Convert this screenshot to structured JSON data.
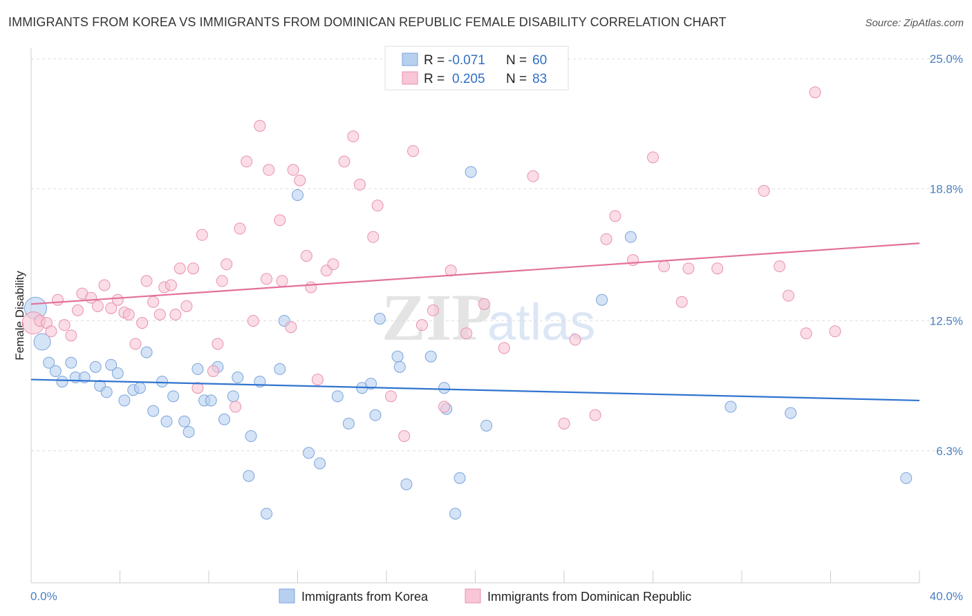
{
  "header": {
    "title": "IMMIGRANTS FROM KOREA VS IMMIGRANTS FROM DOMINICAN REPUBLIC FEMALE DISABILITY CORRELATION CHART",
    "source": "Source: ZipAtlas.com"
  },
  "watermark": {
    "zip": "ZIP",
    "atlas": "atlas"
  },
  "legend_box": {
    "rows": [
      {
        "r_label": "R =",
        "r_value": "-0.071",
        "n_label": "N =",
        "n_value": "60"
      },
      {
        "r_label": "R =",
        "r_value": "0.205",
        "n_label": "N =",
        "n_value": "83"
      }
    ]
  },
  "bottom_legend": [
    "Immigrants from Korea",
    "Immigrants from Dominican Republic"
  ],
  "colors": {
    "korea_fill": "#b8d0f0",
    "korea_stroke": "#7aa3dc",
    "korea_line": "#2f74cf",
    "dominican_fill": "#f8c6d6",
    "dominican_stroke": "#e890ae",
    "dominican_line": "#e2709a",
    "grid": "#dddddd",
    "axis_text": "#4a7fc1"
  },
  "chart_data": {
    "type": "scatter",
    "title": "IMMIGRANTS FROM KOREA VS IMMIGRANTS FROM DOMINICAN REPUBLIC FEMALE DISABILITY CORRELATION CHART",
    "xlabel": "",
    "ylabel": "Female Disability",
    "xlim": [
      0,
      40
    ],
    "ylim": [
      0,
      25.5
    ],
    "x_ticks": [
      "0.0%",
      "40.0%"
    ],
    "y_ticks": [
      {
        "value": 6.3,
        "label": "6.3%"
      },
      {
        "value": 12.5,
        "label": "12.5%"
      },
      {
        "value": 18.8,
        "label": "18.8%"
      },
      {
        "value": 25.0,
        "label": "25.0%"
      }
    ],
    "grid": "horizontal dashed",
    "legend_placement": "top-center",
    "series": [
      {
        "name": "Immigrants from Korea",
        "r": -0.071,
        "n": 60,
        "trend": {
          "x": [
            0,
            40
          ],
          "y": [
            9.7,
            8.7
          ]
        },
        "points": [
          [
            0.2,
            13.1
          ],
          [
            0.5,
            11.5
          ],
          [
            0.8,
            10.5
          ],
          [
            1.1,
            10.1
          ],
          [
            1.4,
            9.6
          ],
          [
            1.8,
            10.5
          ],
          [
            2.0,
            9.8
          ],
          [
            2.4,
            9.8
          ],
          [
            2.9,
            10.3
          ],
          [
            3.1,
            9.4
          ],
          [
            3.4,
            9.1
          ],
          [
            3.6,
            10.4
          ],
          [
            3.9,
            10.0
          ],
          [
            4.2,
            8.7
          ],
          [
            4.6,
            9.2
          ],
          [
            4.9,
            9.3
          ],
          [
            5.2,
            11.0
          ],
          [
            5.5,
            8.2
          ],
          [
            5.9,
            9.6
          ],
          [
            6.1,
            7.7
          ],
          [
            6.4,
            8.9
          ],
          [
            6.9,
            7.7
          ],
          [
            7.1,
            7.2
          ],
          [
            7.5,
            10.2
          ],
          [
            7.8,
            8.7
          ],
          [
            8.1,
            8.7
          ],
          [
            8.4,
            10.3
          ],
          [
            8.7,
            7.8
          ],
          [
            9.1,
            8.9
          ],
          [
            9.3,
            9.8
          ],
          [
            9.8,
            5.1
          ],
          [
            9.9,
            7.0
          ],
          [
            10.3,
            9.6
          ],
          [
            10.6,
            3.3
          ],
          [
            11.2,
            10.2
          ],
          [
            11.4,
            12.5
          ],
          [
            12.0,
            18.5
          ],
          [
            12.5,
            6.2
          ],
          [
            13.0,
            5.7
          ],
          [
            13.8,
            8.9
          ],
          [
            14.3,
            7.6
          ],
          [
            14.9,
            9.3
          ],
          [
            15.3,
            9.5
          ],
          [
            15.5,
            8.0
          ],
          [
            15.7,
            12.6
          ],
          [
            16.5,
            10.8
          ],
          [
            16.6,
            10.3
          ],
          [
            16.9,
            4.7
          ],
          [
            18.0,
            10.8
          ],
          [
            18.6,
            9.3
          ],
          [
            18.7,
            8.3
          ],
          [
            19.1,
            3.3
          ],
          [
            19.3,
            5.0
          ],
          [
            19.8,
            19.6
          ],
          [
            20.5,
            7.5
          ],
          [
            25.7,
            13.5
          ],
          [
            27.0,
            16.5
          ],
          [
            31.5,
            8.4
          ],
          [
            34.2,
            8.1
          ],
          [
            39.4,
            5.0
          ]
        ]
      },
      {
        "name": "Immigrants from Dominican Republic",
        "r": 0.205,
        "n": 83,
        "trend": {
          "x": [
            0,
            40
          ],
          "y": [
            13.3,
            16.2
          ]
        },
        "points": [
          [
            0.1,
            12.4
          ],
          [
            0.4,
            12.5
          ],
          [
            0.7,
            12.4
          ],
          [
            0.9,
            12.0
          ],
          [
            1.2,
            13.5
          ],
          [
            1.5,
            12.3
          ],
          [
            1.8,
            11.8
          ],
          [
            2.1,
            13.0
          ],
          [
            2.3,
            13.8
          ],
          [
            2.7,
            13.6
          ],
          [
            3.0,
            13.2
          ],
          [
            3.3,
            14.2
          ],
          [
            3.6,
            13.1
          ],
          [
            3.9,
            13.5
          ],
          [
            4.2,
            12.9
          ],
          [
            4.4,
            12.8
          ],
          [
            4.7,
            11.4
          ],
          [
            5.0,
            12.4
          ],
          [
            5.2,
            14.4
          ],
          [
            5.5,
            13.4
          ],
          [
            5.8,
            12.8
          ],
          [
            6.0,
            14.1
          ],
          [
            6.3,
            14.2
          ],
          [
            6.5,
            12.8
          ],
          [
            6.7,
            15.0
          ],
          [
            7.0,
            13.2
          ],
          [
            7.3,
            15.0
          ],
          [
            7.5,
            9.3
          ],
          [
            7.7,
            16.6
          ],
          [
            8.2,
            10.1
          ],
          [
            8.4,
            11.4
          ],
          [
            8.6,
            14.4
          ],
          [
            8.8,
            15.2
          ],
          [
            9.2,
            8.4
          ],
          [
            9.4,
            16.9
          ],
          [
            9.7,
            20.1
          ],
          [
            10.0,
            12.5
          ],
          [
            10.3,
            21.8
          ],
          [
            10.6,
            14.5
          ],
          [
            10.7,
            19.7
          ],
          [
            11.2,
            17.3
          ],
          [
            11.3,
            14.4
          ],
          [
            11.7,
            12.2
          ],
          [
            11.8,
            19.7
          ],
          [
            12.1,
            19.2
          ],
          [
            12.4,
            15.6
          ],
          [
            12.6,
            14.1
          ],
          [
            12.9,
            9.7
          ],
          [
            13.3,
            14.9
          ],
          [
            13.6,
            15.2
          ],
          [
            14.1,
            20.1
          ],
          [
            14.5,
            21.3
          ],
          [
            14.8,
            19.0
          ],
          [
            15.4,
            16.5
          ],
          [
            15.6,
            18.0
          ],
          [
            16.2,
            8.9
          ],
          [
            16.8,
            7.0
          ],
          [
            17.2,
            20.6
          ],
          [
            17.6,
            12.3
          ],
          [
            18.1,
            13.0
          ],
          [
            18.6,
            8.4
          ],
          [
            18.9,
            14.9
          ],
          [
            19.6,
            11.9
          ],
          [
            20.4,
            13.3
          ],
          [
            21.3,
            11.2
          ],
          [
            22.6,
            19.4
          ],
          [
            24.0,
            7.6
          ],
          [
            24.5,
            11.6
          ],
          [
            25.4,
            8.0
          ],
          [
            25.9,
            16.4
          ],
          [
            26.3,
            17.5
          ],
          [
            27.1,
            15.4
          ],
          [
            28.0,
            20.3
          ],
          [
            28.5,
            15.1
          ],
          [
            29.3,
            13.4
          ],
          [
            29.6,
            15.0
          ],
          [
            30.9,
            15.0
          ],
          [
            33.0,
            18.7
          ],
          [
            33.7,
            15.1
          ],
          [
            34.1,
            13.7
          ],
          [
            34.9,
            11.9
          ],
          [
            35.3,
            23.4
          ],
          [
            36.2,
            12.0
          ]
        ]
      }
    ]
  }
}
